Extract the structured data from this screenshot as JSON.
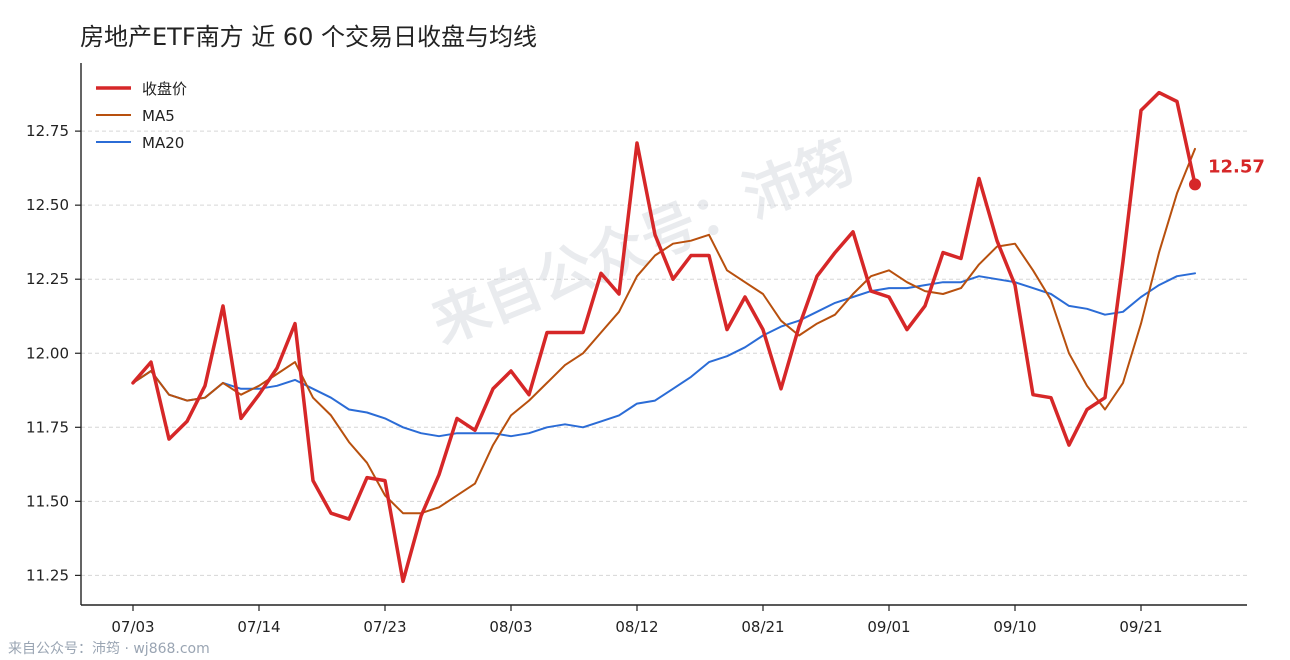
{
  "chart_data": {
    "type": "line",
    "title": "房地产ETF南方 近 60 个交易日收盘与均线",
    "ylim": [
      11.15,
      12.98
    ],
    "yticks": [
      11.25,
      11.5,
      11.75,
      12.0,
      12.25,
      12.5,
      12.75
    ],
    "ytick_labels": [
      "11.25",
      "11.50",
      "11.75",
      "12.00",
      "12.25",
      "12.50",
      "12.75"
    ],
    "xtick_labels": [
      "07/03",
      "07/14",
      "07/23",
      "08/03",
      "08/12",
      "08/21",
      "09/01",
      "09/10",
      "09/21"
    ],
    "xtick_index": [
      0,
      7,
      14,
      21,
      28,
      35,
      42,
      49,
      56
    ],
    "n_points": 60,
    "legend_position": "top-left",
    "grid": "horizontal dashed",
    "series": [
      {
        "name": "收盘价",
        "color": "#d62728",
        "values": [
          11.9,
          11.97,
          11.71,
          11.77,
          11.89,
          12.16,
          11.78,
          11.86,
          11.95,
          12.1,
          11.57,
          11.46,
          11.44,
          11.58,
          11.57,
          11.23,
          11.45,
          11.59,
          11.78,
          11.74,
          11.88,
          11.94,
          11.86,
          12.07,
          12.07,
          12.07,
          12.27,
          12.2,
          12.71,
          12.4,
          12.25,
          12.33,
          12.33,
          12.08,
          12.19,
          12.08,
          11.88,
          12.09,
          12.26,
          12.34,
          12.41,
          12.21,
          12.19,
          12.08,
          12.16,
          12.34,
          12.32,
          12.59,
          12.38,
          12.23,
          11.86,
          11.85,
          11.69,
          11.81,
          11.85,
          12.31,
          12.82,
          12.88,
          12.85,
          12.57
        ]
      },
      {
        "name": "MA5",
        "color": "#b8500e",
        "values": [
          11.9,
          11.94,
          11.86,
          11.84,
          11.85,
          11.9,
          11.86,
          11.89,
          11.93,
          11.97,
          11.85,
          11.79,
          11.7,
          11.63,
          11.52,
          11.46,
          11.46,
          11.48,
          11.52,
          11.56,
          11.69,
          11.79,
          11.84,
          11.9,
          11.96,
          12.0,
          12.07,
          12.14,
          12.26,
          12.33,
          12.37,
          12.38,
          12.4,
          12.28,
          12.24,
          12.2,
          12.11,
          12.06,
          12.1,
          12.13,
          12.2,
          12.26,
          12.28,
          12.24,
          12.21,
          12.2,
          12.22,
          12.3,
          12.36,
          12.37,
          12.28,
          12.18,
          12.0,
          11.89,
          11.81,
          11.9,
          12.1,
          12.34,
          12.54,
          12.69
        ]
      },
      {
        "name": "MA20",
        "color": "#2b6cd6",
        "values": [
          11.9,
          11.94,
          11.86,
          11.84,
          11.85,
          11.9,
          11.88,
          11.88,
          11.89,
          11.91,
          11.88,
          11.85,
          11.81,
          11.8,
          11.78,
          11.75,
          11.73,
          11.72,
          11.73,
          11.73,
          11.73,
          11.72,
          11.73,
          11.75,
          11.76,
          11.75,
          11.77,
          11.79,
          11.83,
          11.84,
          11.88,
          11.92,
          11.97,
          11.99,
          12.02,
          12.06,
          12.09,
          12.11,
          12.14,
          12.17,
          12.19,
          12.21,
          12.22,
          12.22,
          12.23,
          12.24,
          12.24,
          12.26,
          12.25,
          12.24,
          12.22,
          12.2,
          12.16,
          12.15,
          12.13,
          12.14,
          12.19,
          12.23,
          12.26,
          12.27
        ]
      }
    ],
    "last_value_label": "12.57"
  },
  "watermark": "来自公众号：沛筠",
  "footer": "来自公众号：沛筠 · wj868.com"
}
